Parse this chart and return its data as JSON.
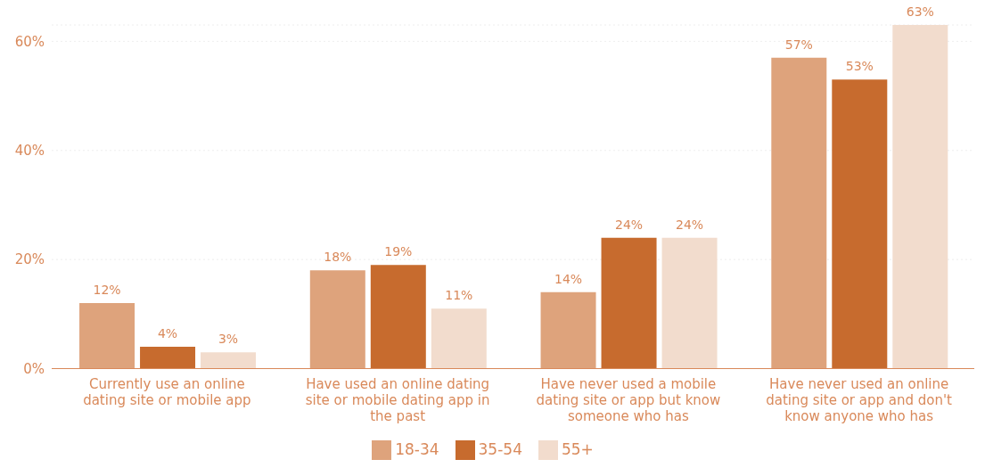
{
  "chart_data": {
    "type": "bar",
    "categories": [
      "Currently use an online dating site or mobile app",
      "Have used an online dating site or mobile dating app in the past",
      "Have never used a mobile dating site or app but know someone who has",
      "Have never used an online dating site or app and don't know anyone who has"
    ],
    "series": [
      {
        "name": "18-34",
        "color": "#dea37c",
        "values": [
          12,
          18,
          14,
          57
        ],
        "value_labels": [
          "12%",
          "18%",
          "14%",
          "57%"
        ]
      },
      {
        "name": "35-54",
        "color": "#c76b2e",
        "values": [
          4,
          19,
          24,
          53
        ],
        "value_labels": [
          "4%",
          "19%",
          "24%",
          "53%"
        ]
      },
      {
        "name": "55+",
        "color": "#f2dccd",
        "values": [
          3,
          11,
          24,
          63
        ],
        "value_labels": [
          "3%",
          "11%",
          "24%",
          "63%"
        ]
      }
    ],
    "ylim": [
      0,
      63
    ],
    "yticks": [
      {
        "value": 0,
        "label": "0%"
      },
      {
        "value": 20,
        "label": "20%"
      },
      {
        "value": 40,
        "label": "40%"
      },
      {
        "value": 60,
        "label": "60%"
      }
    ],
    "grid": "y",
    "legend": "bottom"
  }
}
